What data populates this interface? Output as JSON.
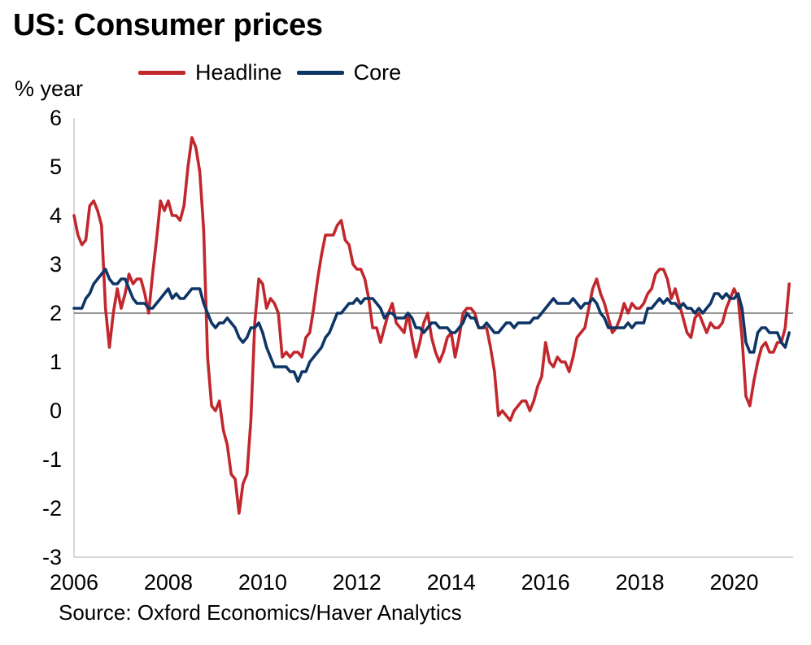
{
  "title": "US: Consumer prices",
  "source": "Source: Oxford Economics/Haver Analytics",
  "chart_data": {
    "type": "line",
    "title": "US: Consumer prices",
    "ylabel": "% year",
    "xlabel": "",
    "ylim": [
      -3,
      6
    ],
    "xlim": [
      2006.0,
      2021.25
    ],
    "reference_line": 2,
    "grid": false,
    "legend_position": "top",
    "yticks": [
      "6",
      "5",
      "4",
      "3",
      "2",
      "1",
      "0",
      "-1",
      "-2",
      "-3"
    ],
    "xticks": [
      "2006",
      "2008",
      "2010",
      "2012",
      "2014",
      "2016",
      "2018",
      "2020"
    ],
    "series": [
      {
        "name": "Headline",
        "color": "#c1272d",
        "x": [
          2006.0,
          2006.083,
          2006.167,
          2006.25,
          2006.333,
          2006.417,
          2006.5,
          2006.583,
          2006.667,
          2006.75,
          2006.833,
          2006.917,
          2007.0,
          2007.083,
          2007.167,
          2007.25,
          2007.333,
          2007.417,
          2007.5,
          2007.583,
          2007.667,
          2007.75,
          2007.833,
          2007.917,
          2008.0,
          2008.083,
          2008.167,
          2008.25,
          2008.333,
          2008.417,
          2008.5,
          2008.583,
          2008.667,
          2008.75,
          2008.833,
          2008.917,
          2009.0,
          2009.083,
          2009.167,
          2009.25,
          2009.333,
          2009.417,
          2009.5,
          2009.583,
          2009.667,
          2009.75,
          2009.833,
          2009.917,
          2010.0,
          2010.083,
          2010.167,
          2010.25,
          2010.333,
          2010.417,
          2010.5,
          2010.583,
          2010.667,
          2010.75,
          2010.833,
          2010.917,
          2011.0,
          2011.083,
          2011.167,
          2011.25,
          2011.333,
          2011.417,
          2011.5,
          2011.583,
          2011.667,
          2011.75,
          2011.833,
          2011.917,
          2012.0,
          2012.083,
          2012.167,
          2012.25,
          2012.333,
          2012.417,
          2012.5,
          2012.583,
          2012.667,
          2012.75,
          2012.833,
          2012.917,
          2013.0,
          2013.083,
          2013.167,
          2013.25,
          2013.333,
          2013.417,
          2013.5,
          2013.583,
          2013.667,
          2013.75,
          2013.833,
          2013.917,
          2014.0,
          2014.083,
          2014.167,
          2014.25,
          2014.333,
          2014.417,
          2014.5,
          2014.583,
          2014.667,
          2014.75,
          2014.833,
          2014.917,
          2015.0,
          2015.083,
          2015.167,
          2015.25,
          2015.333,
          2015.417,
          2015.5,
          2015.583,
          2015.667,
          2015.75,
          2015.833,
          2015.917,
          2016.0,
          2016.083,
          2016.167,
          2016.25,
          2016.333,
          2016.417,
          2016.5,
          2016.583,
          2016.667,
          2016.75,
          2016.833,
          2016.917,
          2017.0,
          2017.083,
          2017.167,
          2017.25,
          2017.333,
          2017.417,
          2017.5,
          2017.583,
          2017.667,
          2017.75,
          2017.833,
          2017.917,
          2018.0,
          2018.083,
          2018.167,
          2018.25,
          2018.333,
          2018.417,
          2018.5,
          2018.583,
          2018.667,
          2018.75,
          2018.833,
          2018.917,
          2019.0,
          2019.083,
          2019.167,
          2019.25,
          2019.333,
          2019.417,
          2019.5,
          2019.583,
          2019.667,
          2019.75,
          2019.833,
          2019.917,
          2020.0,
          2020.083,
          2020.167,
          2020.25,
          2020.333,
          2020.417,
          2020.5,
          2020.583,
          2020.667,
          2020.75,
          2020.833,
          2020.917,
          2021.0,
          2021.083,
          2021.167
        ],
        "values": [
          4.0,
          3.6,
          3.4,
          3.5,
          4.2,
          4.3,
          4.1,
          3.8,
          2.1,
          1.3,
          2.0,
          2.5,
          2.1,
          2.4,
          2.8,
          2.6,
          2.7,
          2.7,
          2.4,
          2.0,
          2.8,
          3.5,
          4.3,
          4.1,
          4.3,
          4.0,
          4.0,
          3.9,
          4.2,
          5.0,
          5.6,
          5.4,
          4.9,
          3.7,
          1.1,
          0.1,
          0.0,
          0.2,
          -0.4,
          -0.7,
          -1.3,
          -1.4,
          -2.1,
          -1.5,
          -1.3,
          -0.2,
          1.8,
          2.7,
          2.6,
          2.1,
          2.3,
          2.2,
          2.0,
          1.1,
          1.2,
          1.1,
          1.2,
          1.2,
          1.1,
          1.5,
          1.6,
          2.1,
          2.7,
          3.2,
          3.6,
          3.6,
          3.6,
          3.8,
          3.9,
          3.5,
          3.4,
          3.0,
          2.9,
          2.9,
          2.7,
          2.3,
          1.7,
          1.7,
          1.4,
          1.7,
          2.0,
          2.2,
          1.8,
          1.7,
          1.6,
          2.0,
          1.5,
          1.1,
          1.4,
          1.8,
          2.0,
          1.5,
          1.2,
          1.0,
          1.2,
          1.5,
          1.6,
          1.1,
          1.5,
          2.0,
          2.1,
          2.1,
          2.0,
          1.7,
          1.7,
          1.7,
          1.3,
          0.8,
          -0.1,
          0.0,
          -0.1,
          -0.2,
          0.0,
          0.1,
          0.2,
          0.2,
          0.0,
          0.2,
          0.5,
          0.7,
          1.4,
          1.0,
          0.9,
          1.1,
          1.0,
          1.0,
          0.8,
          1.1,
          1.5,
          1.6,
          1.7,
          2.1,
          2.5,
          2.7,
          2.4,
          2.2,
          1.9,
          1.6,
          1.7,
          1.9,
          2.2,
          2.0,
          2.2,
          2.1,
          2.1,
          2.2,
          2.4,
          2.5,
          2.8,
          2.9,
          2.9,
          2.7,
          2.3,
          2.5,
          2.2,
          1.9,
          1.6,
          1.5,
          1.9,
          2.0,
          1.8,
          1.6,
          1.8,
          1.7,
          1.7,
          1.8,
          2.1,
          2.3,
          2.5,
          2.3,
          1.5,
          0.3,
          0.1,
          0.6,
          1.0,
          1.3,
          1.4,
          1.2,
          1.2,
          1.4,
          1.4,
          1.7,
          2.6
        ]
      },
      {
        "name": "Core",
        "color": "#0d3566",
        "x": [
          2006.0,
          2006.083,
          2006.167,
          2006.25,
          2006.333,
          2006.417,
          2006.5,
          2006.583,
          2006.667,
          2006.75,
          2006.833,
          2006.917,
          2007.0,
          2007.083,
          2007.167,
          2007.25,
          2007.333,
          2007.417,
          2007.5,
          2007.583,
          2007.667,
          2007.75,
          2007.833,
          2007.917,
          2008.0,
          2008.083,
          2008.167,
          2008.25,
          2008.333,
          2008.417,
          2008.5,
          2008.583,
          2008.667,
          2008.75,
          2008.833,
          2008.917,
          2009.0,
          2009.083,
          2009.167,
          2009.25,
          2009.333,
          2009.417,
          2009.5,
          2009.583,
          2009.667,
          2009.75,
          2009.833,
          2009.917,
          2010.0,
          2010.083,
          2010.167,
          2010.25,
          2010.333,
          2010.417,
          2010.5,
          2010.583,
          2010.667,
          2010.75,
          2010.833,
          2010.917,
          2011.0,
          2011.083,
          2011.167,
          2011.25,
          2011.333,
          2011.417,
          2011.5,
          2011.583,
          2011.667,
          2011.75,
          2011.833,
          2011.917,
          2012.0,
          2012.083,
          2012.167,
          2012.25,
          2012.333,
          2012.417,
          2012.5,
          2012.583,
          2012.667,
          2012.75,
          2012.833,
          2012.917,
          2013.0,
          2013.083,
          2013.167,
          2013.25,
          2013.333,
          2013.417,
          2013.5,
          2013.583,
          2013.667,
          2013.75,
          2013.833,
          2013.917,
          2014.0,
          2014.083,
          2014.167,
          2014.25,
          2014.333,
          2014.417,
          2014.5,
          2014.583,
          2014.667,
          2014.75,
          2014.833,
          2014.917,
          2015.0,
          2015.083,
          2015.167,
          2015.25,
          2015.333,
          2015.417,
          2015.5,
          2015.583,
          2015.667,
          2015.75,
          2015.833,
          2015.917,
          2016.0,
          2016.083,
          2016.167,
          2016.25,
          2016.333,
          2016.417,
          2016.5,
          2016.583,
          2016.667,
          2016.75,
          2016.833,
          2016.917,
          2017.0,
          2017.083,
          2017.167,
          2017.25,
          2017.333,
          2017.417,
          2017.5,
          2017.583,
          2017.667,
          2017.75,
          2017.833,
          2017.917,
          2018.0,
          2018.083,
          2018.167,
          2018.25,
          2018.333,
          2018.417,
          2018.5,
          2018.583,
          2018.667,
          2018.75,
          2018.833,
          2018.917,
          2019.0,
          2019.083,
          2019.167,
          2019.25,
          2019.333,
          2019.417,
          2019.5,
          2019.583,
          2019.667,
          2019.75,
          2019.833,
          2019.917,
          2020.0,
          2020.083,
          2020.167,
          2020.25,
          2020.333,
          2020.417,
          2020.5,
          2020.583,
          2020.667,
          2020.75,
          2020.833,
          2020.917,
          2021.0,
          2021.083,
          2021.167
        ],
        "values": [
          2.1,
          2.1,
          2.1,
          2.3,
          2.4,
          2.6,
          2.7,
          2.8,
          2.9,
          2.7,
          2.6,
          2.6,
          2.7,
          2.7,
          2.5,
          2.3,
          2.2,
          2.2,
          2.2,
          2.1,
          2.1,
          2.2,
          2.3,
          2.4,
          2.5,
          2.3,
          2.4,
          2.3,
          2.3,
          2.4,
          2.5,
          2.5,
          2.5,
          2.2,
          2.0,
          1.8,
          1.7,
          1.8,
          1.8,
          1.9,
          1.8,
          1.7,
          1.5,
          1.4,
          1.5,
          1.7,
          1.7,
          1.8,
          1.6,
          1.3,
          1.1,
          0.9,
          0.9,
          0.9,
          0.9,
          0.8,
          0.8,
          0.6,
          0.8,
          0.8,
          1.0,
          1.1,
          1.2,
          1.3,
          1.5,
          1.6,
          1.8,
          2.0,
          2.0,
          2.1,
          2.2,
          2.2,
          2.3,
          2.2,
          2.3,
          2.3,
          2.3,
          2.2,
          2.1,
          1.9,
          2.0,
          2.0,
          1.9,
          1.9,
          1.9,
          2.0,
          1.9,
          1.7,
          1.7,
          1.6,
          1.7,
          1.8,
          1.8,
          1.7,
          1.7,
          1.7,
          1.6,
          1.6,
          1.7,
          1.8,
          2.0,
          1.9,
          1.9,
          1.7,
          1.7,
          1.8,
          1.7,
          1.6,
          1.6,
          1.7,
          1.8,
          1.8,
          1.7,
          1.8,
          1.8,
          1.8,
          1.8,
          1.9,
          1.9,
          2.0,
          2.1,
          2.2,
          2.3,
          2.2,
          2.2,
          2.2,
          2.2,
          2.3,
          2.2,
          2.1,
          2.2,
          2.2,
          2.3,
          2.2,
          2.0,
          1.9,
          1.7,
          1.7,
          1.7,
          1.7,
          1.7,
          1.8,
          1.7,
          1.8,
          1.8,
          1.8,
          2.1,
          2.1,
          2.2,
          2.3,
          2.2,
          2.3,
          2.2,
          2.2,
          2.1,
          2.2,
          2.1,
          2.1,
          2.0,
          2.1,
          2.0,
          2.1,
          2.2,
          2.4,
          2.4,
          2.3,
          2.4,
          2.3,
          2.3,
          2.4,
          2.1,
          1.4,
          1.2,
          1.2,
          1.6,
          1.7,
          1.7,
          1.6,
          1.6,
          1.6,
          1.4,
          1.3,
          1.6
        ]
      }
    ]
  }
}
